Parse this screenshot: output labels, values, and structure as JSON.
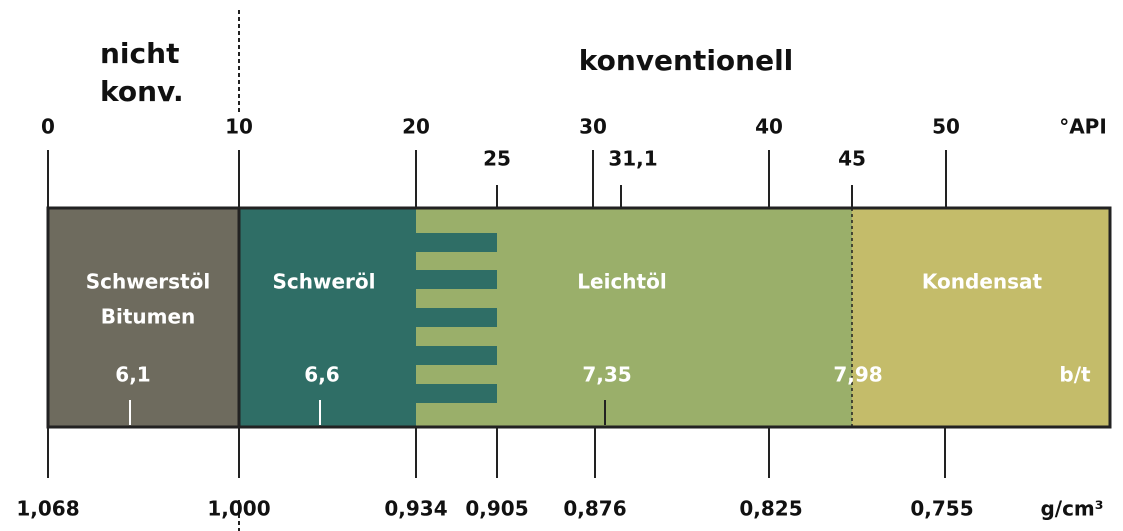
{
  "header": {
    "left": [
      "nicht",
      "konv."
    ],
    "right": "konventionell"
  },
  "api_unit": "°API",
  "api_ticks": [
    "0",
    "10",
    "20",
    "30",
    "40",
    "50"
  ],
  "api_marks": [
    "25",
    "31,1",
    "45"
  ],
  "segments": [
    [
      "Schwerstöl",
      "Bitumen"
    ],
    [
      "Schweröl"
    ],
    [
      "Leichtöl"
    ],
    [
      "Kondensat"
    ]
  ],
  "yields": [
    "6,1",
    "6,6",
    "7,35",
    "7,98"
  ],
  "yield_unit": "b/t",
  "density_ticks": [
    "1,068",
    "1,000",
    "0,934",
    "0,905",
    "0,876",
    "0,825",
    "0,755"
  ],
  "density_unit": "g/cm³"
}
